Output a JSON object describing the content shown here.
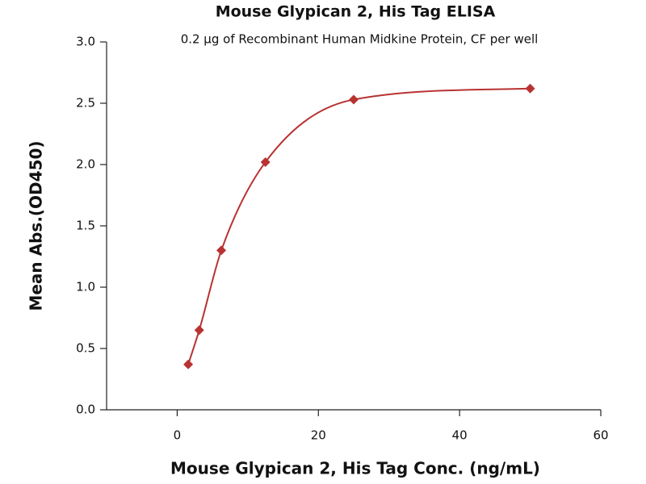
{
  "chart_data": {
    "type": "scatter",
    "title": "Mouse Glypican 2, His Tag ELISA",
    "subtitle": "0.2 μg of Recombinant Human Midkine Protein, CF per well",
    "x_label": "Mouse Glypican 2, His Tag Conc. (ng/mL)",
    "y_label": "Mean Abs.(OD450)",
    "x": [
      1.5625,
      3.125,
      6.25,
      12.5,
      25,
      50
    ],
    "values": [
      0.37,
      0.65,
      1.3,
      2.02,
      2.53,
      2.62
    ],
    "color": "#b83232",
    "xlim": [
      -10,
      60
    ],
    "xticks": [
      0,
      20,
      40,
      60
    ],
    "ylim": [
      0,
      3.0
    ],
    "yticks": [
      {
        "value": 0,
        "label": "0.0"
      },
      {
        "value": 0.5,
        "label": "0.5"
      },
      {
        "value": 1.0,
        "label": "1.0"
      },
      {
        "value": 1.5,
        "label": "1.5"
      },
      {
        "value": 2.0,
        "label": "2.0"
      },
      {
        "value": 2.5,
        "label": "2.5"
      },
      {
        "value": 3.0,
        "label": "3.0"
      }
    ]
  }
}
